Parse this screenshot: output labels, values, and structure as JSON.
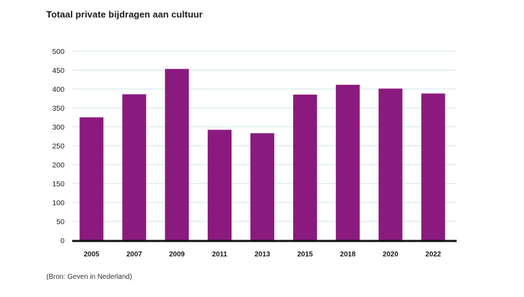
{
  "chart_data": {
    "type": "bar",
    "title": "Totaal private bijdragen aan cultuur",
    "source": "(Bron: Geven in Nederland)",
    "categories": [
      "2005",
      "2007",
      "2009",
      "2011",
      "2013",
      "2015",
      "2018",
      "2020",
      "2022"
    ],
    "values": [
      325,
      386,
      453,
      292,
      283,
      385,
      411,
      401,
      388
    ],
    "yticks": [
      0,
      50,
      100,
      150,
      200,
      250,
      300,
      350,
      400,
      450,
      500
    ],
    "ylim": [
      0,
      500
    ],
    "xlabel": "",
    "ylabel": "",
    "grid": true,
    "bar_color": "#8b1a7e",
    "grid_color": "#cfe3e8",
    "axis_color": "#111111"
  }
}
